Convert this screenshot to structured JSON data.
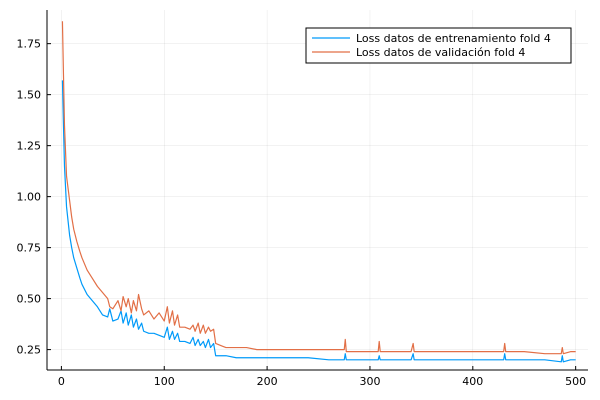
{
  "chart_data": {
    "type": "line",
    "xlim": [
      -14,
      512
    ],
    "ylim": [
      0.15,
      1.915
    ],
    "xticks": [
      0,
      100,
      200,
      300,
      400,
      500
    ],
    "yticks": [
      0.25,
      0.5,
      0.75,
      1.0,
      1.25,
      1.5,
      1.75
    ],
    "xtick_labels": [
      "0",
      "100",
      "200",
      "300",
      "400",
      "500"
    ],
    "ytick_labels": [
      "0.25",
      "0.50",
      "0.75",
      "1.00",
      "1.25",
      "1.50",
      "1.75"
    ],
    "grid": true,
    "legend_position": "top-right",
    "series": [
      {
        "name": "Loss datos de entrenamiento fold 4",
        "color": "#009AF9",
        "x": [
          1,
          2,
          3,
          5,
          8,
          10,
          12,
          15,
          18,
          20,
          25,
          30,
          35,
          40,
          45,
          47,
          50,
          55,
          58,
          60,
          63,
          65,
          68,
          70,
          73,
          75,
          78,
          80,
          85,
          90,
          95,
          100,
          103,
          105,
          108,
          110,
          113,
          115,
          120,
          125,
          128,
          130,
          133,
          135,
          138,
          140,
          143,
          145,
          148,
          150,
          155,
          160,
          170,
          180,
          190,
          200,
          220,
          240,
          260,
          275,
          276,
          277,
          290,
          308,
          309,
          310,
          320,
          340,
          342,
          343,
          360,
          380,
          400,
          420,
          430,
          431,
          432,
          450,
          470,
          486,
          487,
          488,
          495,
          500
        ],
        "values": [
          1.57,
          1.35,
          1.15,
          0.95,
          0.81,
          0.75,
          0.7,
          0.65,
          0.6,
          0.57,
          0.52,
          0.49,
          0.46,
          0.42,
          0.41,
          0.45,
          0.39,
          0.4,
          0.44,
          0.38,
          0.43,
          0.37,
          0.42,
          0.36,
          0.4,
          0.35,
          0.38,
          0.34,
          0.33,
          0.33,
          0.32,
          0.31,
          0.36,
          0.3,
          0.34,
          0.3,
          0.33,
          0.29,
          0.29,
          0.28,
          0.31,
          0.27,
          0.3,
          0.27,
          0.29,
          0.26,
          0.3,
          0.26,
          0.28,
          0.22,
          0.22,
          0.22,
          0.21,
          0.21,
          0.21,
          0.21,
          0.21,
          0.21,
          0.2,
          0.2,
          0.23,
          0.2,
          0.2,
          0.2,
          0.22,
          0.2,
          0.2,
          0.2,
          0.23,
          0.2,
          0.2,
          0.2,
          0.2,
          0.2,
          0.2,
          0.23,
          0.2,
          0.2,
          0.2,
          0.19,
          0.22,
          0.19,
          0.2,
          0.2
        ]
      },
      {
        "name": "Loss datos de validación fold 4",
        "color": "#E26F46",
        "x": [
          1,
          2,
          3,
          5,
          8,
          10,
          12,
          15,
          18,
          20,
          25,
          30,
          35,
          40,
          45,
          47,
          50,
          55,
          58,
          60,
          63,
          65,
          68,
          70,
          73,
          75,
          78,
          80,
          85,
          90,
          95,
          100,
          103,
          105,
          108,
          110,
          113,
          115,
          120,
          125,
          128,
          130,
          133,
          135,
          138,
          140,
          143,
          145,
          148,
          150,
          155,
          160,
          170,
          180,
          190,
          200,
          220,
          240,
          260,
          275,
          276,
          277,
          290,
          308,
          309,
          310,
          320,
          340,
          342,
          343,
          360,
          380,
          400,
          420,
          430,
          431,
          432,
          450,
          470,
          486,
          487,
          488,
          495,
          500
        ],
        "values": [
          1.86,
          1.6,
          1.35,
          1.1,
          0.98,
          0.9,
          0.84,
          0.78,
          0.73,
          0.7,
          0.64,
          0.6,
          0.56,
          0.53,
          0.5,
          0.46,
          0.45,
          0.49,
          0.44,
          0.51,
          0.46,
          0.5,
          0.43,
          0.49,
          0.44,
          0.52,
          0.45,
          0.42,
          0.44,
          0.4,
          0.43,
          0.39,
          0.46,
          0.38,
          0.44,
          0.37,
          0.42,
          0.36,
          0.36,
          0.35,
          0.37,
          0.34,
          0.38,
          0.33,
          0.37,
          0.33,
          0.36,
          0.34,
          0.35,
          0.28,
          0.27,
          0.26,
          0.26,
          0.26,
          0.25,
          0.25,
          0.25,
          0.25,
          0.25,
          0.25,
          0.3,
          0.24,
          0.24,
          0.24,
          0.29,
          0.24,
          0.24,
          0.24,
          0.28,
          0.24,
          0.24,
          0.24,
          0.24,
          0.24,
          0.24,
          0.28,
          0.24,
          0.24,
          0.23,
          0.23,
          0.26,
          0.23,
          0.24,
          0.24
        ]
      }
    ]
  }
}
